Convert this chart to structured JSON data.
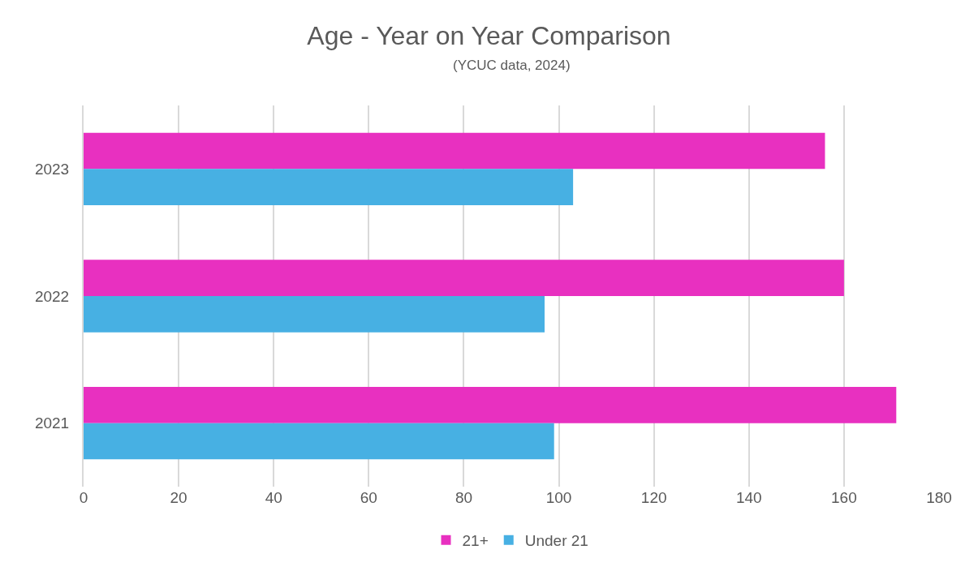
{
  "chart_data": {
    "type": "bar",
    "orientation": "horizontal",
    "title": "Age - Year on Year Comparison",
    "subtitle": "(YCUC data, 2024)",
    "categories": [
      "2023",
      "2022",
      "2021"
    ],
    "series": [
      {
        "name": "21+",
        "color": "#e830c0",
        "values": [
          156,
          160,
          171
        ]
      },
      {
        "name": "Under 21",
        "color": "#47b0e3",
        "values": [
          103,
          97,
          99
        ]
      }
    ],
    "xlim": [
      0,
      180
    ],
    "xticks": [
      0,
      20,
      40,
      60,
      80,
      100,
      120,
      140,
      160,
      180
    ],
    "grid": "x",
    "legend": "bottom"
  }
}
